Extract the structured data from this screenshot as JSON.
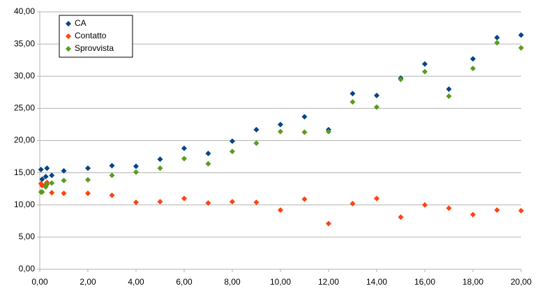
{
  "chart_data": {
    "type": "scatter",
    "x": [
      0.05,
      0.1,
      0.25,
      0.3,
      0.5,
      1,
      2,
      3,
      4,
      5,
      6,
      7,
      8,
      9,
      10,
      11,
      12,
      13,
      14,
      15,
      16,
      17,
      18,
      19,
      20
    ],
    "series": [
      {
        "name": "CA",
        "color": "#004586",
        "values": [
          15.5,
          14.0,
          14.4,
          15.7,
          14.6,
          15.3,
          15.7,
          16.1,
          16.0,
          17.1,
          18.8,
          18.0,
          19.9,
          21.7,
          22.5,
          23.7,
          21.7,
          27.3,
          27.0,
          29.7,
          31.9,
          28.0,
          32.7,
          36.0,
          36.4
        ]
      },
      {
        "name": "Contatto",
        "color": "#ff420e",
        "values": [
          13.3,
          13.0,
          13.2,
          13.5,
          11.9,
          11.8,
          11.8,
          11.5,
          10.4,
          10.5,
          11.0,
          10.3,
          10.5,
          10.4,
          9.2,
          10.9,
          7.1,
          10.2,
          11.0,
          8.1,
          10.0,
          9.5,
          8.5,
          9.2,
          9.1
        ]
      },
      {
        "name": "Sprovvista",
        "color": "#579d1c",
        "values": [
          12.0,
          12.0,
          12.8,
          13.2,
          13.4,
          13.8,
          13.9,
          14.6,
          15.1,
          15.7,
          17.2,
          16.4,
          18.3,
          19.6,
          21.4,
          21.3,
          21.4,
          26.0,
          25.2,
          29.5,
          30.7,
          26.9,
          31.2,
          35.2,
          34.4
        ]
      }
    ],
    "xlim": [
      0,
      20
    ],
    "xticks": [
      {
        "value": 0,
        "label": "0,00"
      },
      {
        "value": 2,
        "label": "2,00"
      },
      {
        "value": 4,
        "label": "4,00"
      },
      {
        "value": 6,
        "label": "6,00"
      },
      {
        "value": 8,
        "label": "8,00"
      },
      {
        "value": 10,
        "label": "10,00"
      },
      {
        "value": 12,
        "label": "12,00"
      },
      {
        "value": 14,
        "label": "14,00"
      },
      {
        "value": 16,
        "label": "16,00"
      },
      {
        "value": 18,
        "label": "18,00"
      },
      {
        "value": 20,
        "label": "20,00"
      }
    ],
    "ylim": [
      0,
      40
    ],
    "yticks": [
      {
        "value": 0,
        "label": "0,00"
      },
      {
        "value": 5,
        "label": "5,00"
      },
      {
        "value": 10,
        "label": "10,00"
      },
      {
        "value": 15,
        "label": "15,00"
      },
      {
        "value": 20,
        "label": "20,00"
      },
      {
        "value": 25,
        "label": "25,00"
      },
      {
        "value": 30,
        "label": "30,00"
      },
      {
        "value": 35,
        "label": "35,00"
      },
      {
        "value": 40,
        "label": "40,00"
      }
    ],
    "grid": true,
    "legend": "top-left"
  }
}
